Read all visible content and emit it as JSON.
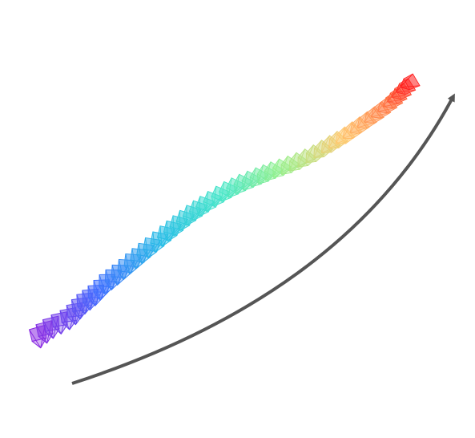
{
  "figure": {
    "background_color": "#ffffff",
    "arrow": {
      "color": "#555555",
      "direction": "bottom-left-to-top-right"
    },
    "trajectory": {
      "marker_shape": "camera-frustum",
      "colormap": "rainbow",
      "color_start": "#8a2be2",
      "color_end": "#ff1a1a",
      "count": 56
    }
  }
}
